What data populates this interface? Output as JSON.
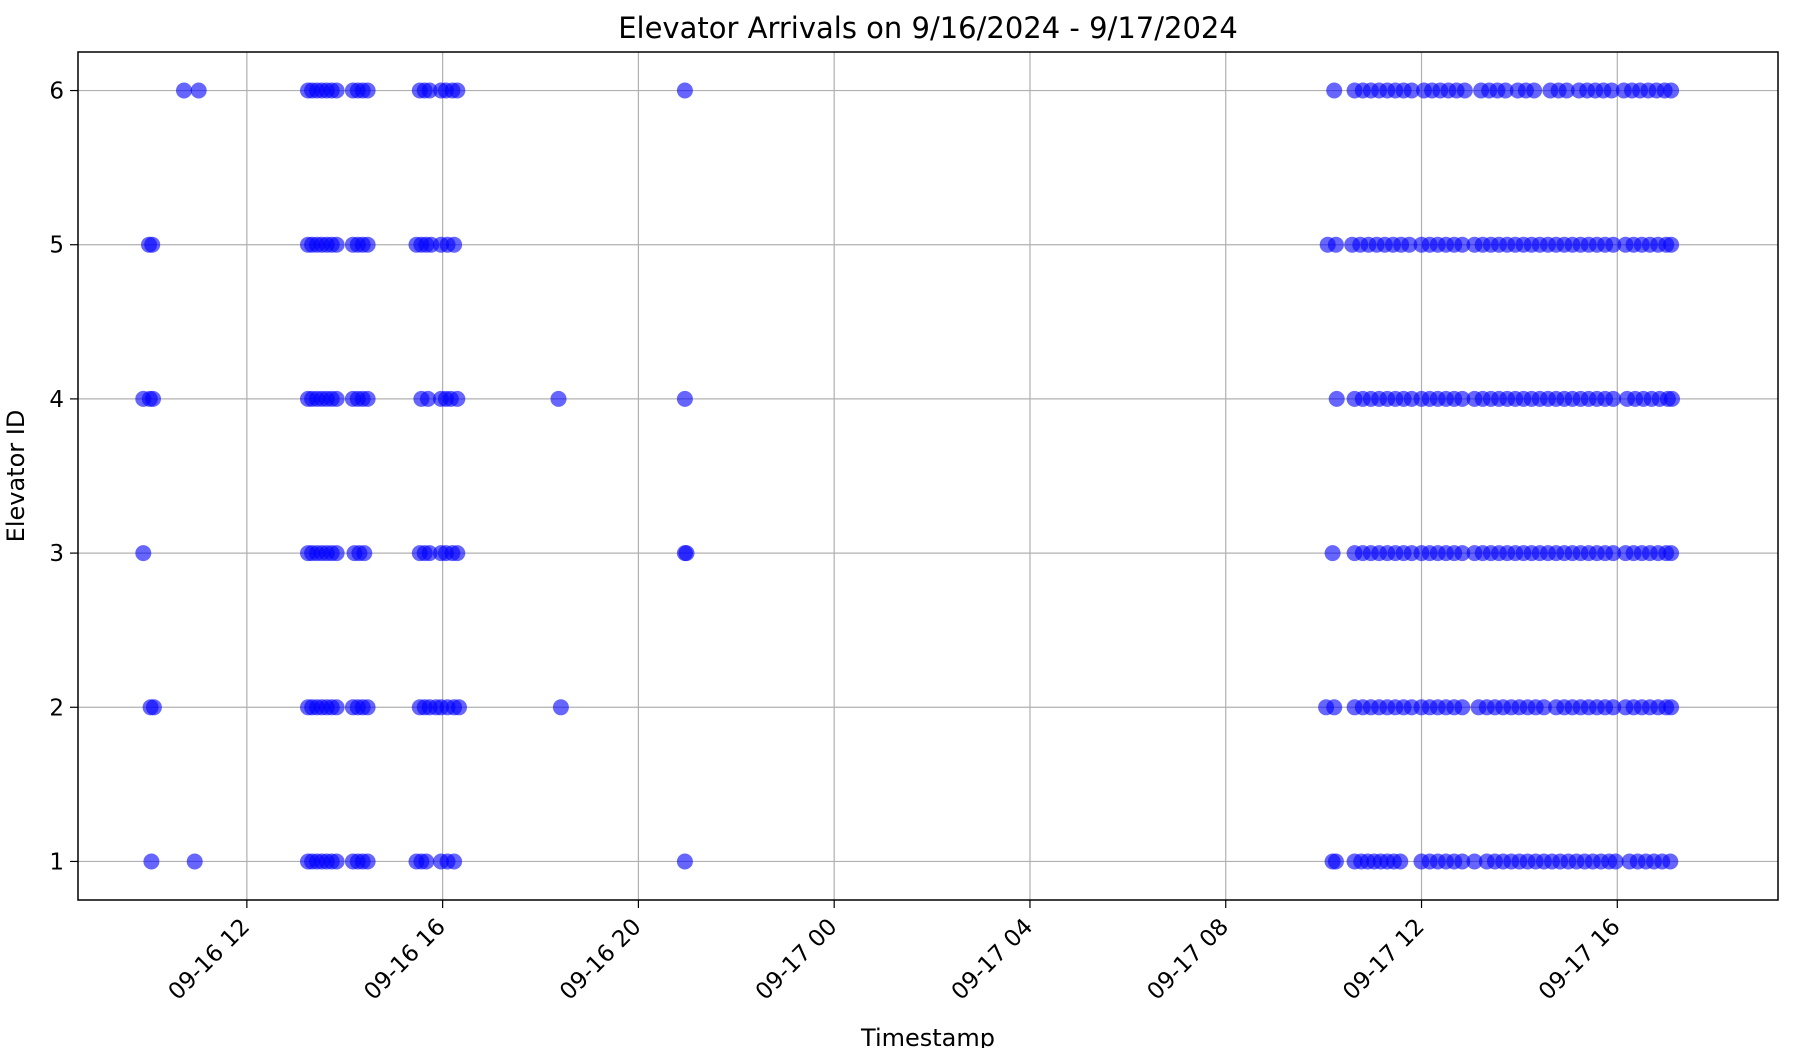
{
  "chart_data": {
    "type": "scatter",
    "title": "Elevator Arrivals on 9/16/2024 - 9/17/2024",
    "xlabel": "Timestamp",
    "ylabel": "Elevator ID",
    "x_is_time": true,
    "xlim": [
      "2024-09-16 08:33",
      "2024-09-17 19:17"
    ],
    "ylim": [
      0.75,
      6.25
    ],
    "x_ticks": [
      {
        "t": "2024-09-16 12:00",
        "label": "09-16 12"
      },
      {
        "t": "2024-09-16 16:00",
        "label": "09-16 16"
      },
      {
        "t": "2024-09-16 20:00",
        "label": "09-16 20"
      },
      {
        "t": "2024-09-17 00:00",
        "label": "09-17 00"
      },
      {
        "t": "2024-09-17 04:00",
        "label": "09-17 04"
      },
      {
        "t": "2024-09-17 08:00",
        "label": "09-17 08"
      },
      {
        "t": "2024-09-17 12:00",
        "label": "09-17 12"
      },
      {
        "t": "2024-09-17 16:00",
        "label": "09-17 16"
      }
    ],
    "y_ticks": [
      1,
      2,
      3,
      4,
      5,
      6
    ],
    "grid": true,
    "marker_color": "#0000ff",
    "marker_alpha": 0.6,
    "series": [
      {
        "y": 6,
        "x": [
          "2024-09-16 10:43",
          "2024-09-16 11:01",
          "2024-09-16 13:15",
          "2024-09-16 13:20",
          "2024-09-16 13:26",
          "2024-09-16 13:32",
          "2024-09-16 13:38",
          "2024-09-16 13:44",
          "2024-09-16 13:50",
          "2024-09-16 14:10",
          "2024-09-16 14:16",
          "2024-09-16 14:22",
          "2024-09-16 14:28",
          "2024-09-16 15:32",
          "2024-09-16 15:38",
          "2024-09-16 15:44",
          "2024-09-16 15:58",
          "2024-09-16 16:04",
          "2024-09-16 16:12",
          "2024-09-16 16:18",
          "2024-09-16 20:57",
          "2024-09-17 10:13",
          "2024-09-17 10:38",
          "2024-09-17 10:48",
          "2024-09-17 10:58",
          "2024-09-17 11:08",
          "2024-09-17 11:18",
          "2024-09-17 11:28",
          "2024-09-17 11:38",
          "2024-09-17 11:48",
          "2024-09-17 12:03",
          "2024-09-17 12:13",
          "2024-09-17 12:23",
          "2024-09-17 12:33",
          "2024-09-17 12:43",
          "2024-09-17 12:53",
          "2024-09-17 13:13",
          "2024-09-17 13:23",
          "2024-09-17 13:33",
          "2024-09-17 13:43",
          "2024-09-17 13:58",
          "2024-09-17 14:08",
          "2024-09-17 14:18",
          "2024-09-17 14:38",
          "2024-09-17 14:48",
          "2024-09-17 14:58",
          "2024-09-17 15:13",
          "2024-09-17 15:23",
          "2024-09-17 15:33",
          "2024-09-17 15:43",
          "2024-09-17 15:53",
          "2024-09-17 16:08",
          "2024-09-17 16:18",
          "2024-09-17 16:28",
          "2024-09-17 16:38",
          "2024-09-17 16:48",
          "2024-09-17 16:58",
          "2024-09-17 17:06"
        ]
      },
      {
        "y": 5,
        "x": [
          "2024-09-16 10:00",
          "2024-09-16 10:04",
          "2024-09-16 13:15",
          "2024-09-16 13:20",
          "2024-09-16 13:26",
          "2024-09-16 13:32",
          "2024-09-16 13:38",
          "2024-09-16 13:44",
          "2024-09-16 13:50",
          "2024-09-16 14:10",
          "2024-09-16 14:16",
          "2024-09-16 14:22",
          "2024-09-16 14:28",
          "2024-09-16 15:28",
          "2024-09-16 15:34",
          "2024-09-16 15:40",
          "2024-09-16 15:46",
          "2024-09-16 15:58",
          "2024-09-16 16:06",
          "2024-09-16 16:14",
          "2024-09-17 10:05",
          "2024-09-17 10:15",
          "2024-09-17 10:35",
          "2024-09-17 10:45",
          "2024-09-17 10:55",
          "2024-09-17 11:05",
          "2024-09-17 11:15",
          "2024-09-17 11:25",
          "2024-09-17 11:35",
          "2024-09-17 11:45",
          "2024-09-17 12:00",
          "2024-09-17 12:10",
          "2024-09-17 12:20",
          "2024-09-17 12:30",
          "2024-09-17 12:40",
          "2024-09-17 12:50",
          "2024-09-17 13:05",
          "2024-09-17 13:15",
          "2024-09-17 13:25",
          "2024-09-17 13:35",
          "2024-09-17 13:45",
          "2024-09-17 13:55",
          "2024-09-17 14:05",
          "2024-09-17 14:15",
          "2024-09-17 14:25",
          "2024-09-17 14:35",
          "2024-09-17 14:45",
          "2024-09-17 14:55",
          "2024-09-17 15:05",
          "2024-09-17 15:15",
          "2024-09-17 15:25",
          "2024-09-17 15:35",
          "2024-09-17 15:45",
          "2024-09-17 15:55",
          "2024-09-17 16:10",
          "2024-09-17 16:20",
          "2024-09-17 16:30",
          "2024-09-17 16:40",
          "2024-09-17 16:50",
          "2024-09-17 17:00",
          "2024-09-17 17:06"
        ]
      },
      {
        "y": 4,
        "x": [
          "2024-09-16 09:53",
          "2024-09-16 10:01",
          "2024-09-16 10:05",
          "2024-09-16 13:15",
          "2024-09-16 13:20",
          "2024-09-16 13:26",
          "2024-09-16 13:32",
          "2024-09-16 13:38",
          "2024-09-16 13:44",
          "2024-09-16 13:50",
          "2024-09-16 14:10",
          "2024-09-16 14:16",
          "2024-09-16 14:22",
          "2024-09-16 14:28",
          "2024-09-16 15:34",
          "2024-09-16 15:42",
          "2024-09-16 15:58",
          "2024-09-16 16:04",
          "2024-09-16 16:10",
          "2024-09-16 16:18",
          "2024-09-16 18:22",
          "2024-09-16 20:57",
          "2024-09-17 10:16",
          "2024-09-17 10:38",
          "2024-09-17 10:48",
          "2024-09-17 10:58",
          "2024-09-17 11:08",
          "2024-09-17 11:18",
          "2024-09-17 11:28",
          "2024-09-17 11:38",
          "2024-09-17 11:48",
          "2024-09-17 12:00",
          "2024-09-17 12:10",
          "2024-09-17 12:20",
          "2024-09-17 12:30",
          "2024-09-17 12:40",
          "2024-09-17 12:50",
          "2024-09-17 13:05",
          "2024-09-17 13:15",
          "2024-09-17 13:25",
          "2024-09-17 13:35",
          "2024-09-17 13:45",
          "2024-09-17 13:55",
          "2024-09-17 14:05",
          "2024-09-17 14:15",
          "2024-09-17 14:25",
          "2024-09-17 14:35",
          "2024-09-17 14:45",
          "2024-09-17 14:55",
          "2024-09-17 15:05",
          "2024-09-17 15:15",
          "2024-09-17 15:25",
          "2024-09-17 15:35",
          "2024-09-17 15:45",
          "2024-09-17 15:55",
          "2024-09-17 16:12",
          "2024-09-17 16:22",
          "2024-09-17 16:32",
          "2024-09-17 16:42",
          "2024-09-17 16:52",
          "2024-09-17 17:02",
          "2024-09-17 17:07"
        ]
      },
      {
        "y": 3,
        "x": [
          "2024-09-16 09:53",
          "2024-09-16 13:15",
          "2024-09-16 13:20",
          "2024-09-16 13:26",
          "2024-09-16 13:32",
          "2024-09-16 13:38",
          "2024-09-16 13:44",
          "2024-09-16 13:50",
          "2024-09-16 14:12",
          "2024-09-16 14:18",
          "2024-09-16 14:24",
          "2024-09-16 15:32",
          "2024-09-16 15:38",
          "2024-09-16 15:44",
          "2024-09-16 15:58",
          "2024-09-16 16:04",
          "2024-09-16 16:12",
          "2024-09-16 16:18",
          "2024-09-16 20:57",
          "2024-09-16 20:59",
          "2024-09-17 10:11",
          "2024-09-17 10:38",
          "2024-09-17 10:48",
          "2024-09-17 10:58",
          "2024-09-17 11:08",
          "2024-09-17 11:18",
          "2024-09-17 11:28",
          "2024-09-17 11:38",
          "2024-09-17 11:48",
          "2024-09-17 12:00",
          "2024-09-17 12:10",
          "2024-09-17 12:20",
          "2024-09-17 12:30",
          "2024-09-17 12:40",
          "2024-09-17 12:50",
          "2024-09-17 13:05",
          "2024-09-17 13:15",
          "2024-09-17 13:25",
          "2024-09-17 13:35",
          "2024-09-17 13:45",
          "2024-09-17 13:55",
          "2024-09-17 14:05",
          "2024-09-17 14:15",
          "2024-09-17 14:25",
          "2024-09-17 14:35",
          "2024-09-17 14:45",
          "2024-09-17 14:55",
          "2024-09-17 15:05",
          "2024-09-17 15:15",
          "2024-09-17 15:25",
          "2024-09-17 15:35",
          "2024-09-17 15:45",
          "2024-09-17 15:55",
          "2024-09-17 16:10",
          "2024-09-17 16:20",
          "2024-09-17 16:30",
          "2024-09-17 16:40",
          "2024-09-17 16:50",
          "2024-09-17 17:00",
          "2024-09-17 17:06"
        ]
      },
      {
        "y": 2,
        "x": [
          "2024-09-16 10:02",
          "2024-09-16 10:06",
          "2024-09-16 13:15",
          "2024-09-16 13:20",
          "2024-09-16 13:26",
          "2024-09-16 13:32",
          "2024-09-16 13:38",
          "2024-09-16 13:44",
          "2024-09-16 13:50",
          "2024-09-16 14:10",
          "2024-09-16 14:16",
          "2024-09-16 14:22",
          "2024-09-16 14:28",
          "2024-09-16 15:32",
          "2024-09-16 15:38",
          "2024-09-16 15:44",
          "2024-09-16 15:52",
          "2024-09-16 15:58",
          "2024-09-16 16:06",
          "2024-09-16 16:14",
          "2024-09-16 16:20",
          "2024-09-16 18:25",
          "2024-09-17 10:03",
          "2024-09-17 10:13",
          "2024-09-17 10:38",
          "2024-09-17 10:48",
          "2024-09-17 10:58",
          "2024-09-17 11:08",
          "2024-09-17 11:18",
          "2024-09-17 11:28",
          "2024-09-17 11:38",
          "2024-09-17 11:48",
          "2024-09-17 12:00",
          "2024-09-17 12:10",
          "2024-09-17 12:20",
          "2024-09-17 12:30",
          "2024-09-17 12:40",
          "2024-09-17 12:50",
          "2024-09-17 13:10",
          "2024-09-17 13:20",
          "2024-09-17 13:30",
          "2024-09-17 13:40",
          "2024-09-17 13:50",
          "2024-09-17 14:00",
          "2024-09-17 14:10",
          "2024-09-17 14:20",
          "2024-09-17 14:30",
          "2024-09-17 14:45",
          "2024-09-17 14:55",
          "2024-09-17 15:05",
          "2024-09-17 15:15",
          "2024-09-17 15:25",
          "2024-09-17 15:35",
          "2024-09-17 15:45",
          "2024-09-17 15:55",
          "2024-09-17 16:10",
          "2024-09-17 16:20",
          "2024-09-17 16:30",
          "2024-09-17 16:40",
          "2024-09-17 16:50",
          "2024-09-17 17:00",
          "2024-09-17 17:06"
        ]
      },
      {
        "y": 1,
        "x": [
          "2024-09-16 10:03",
          "2024-09-16 10:56",
          "2024-09-16 13:15",
          "2024-09-16 13:20",
          "2024-09-16 13:26",
          "2024-09-16 13:32",
          "2024-09-16 13:38",
          "2024-09-16 13:44",
          "2024-09-16 13:50",
          "2024-09-16 14:10",
          "2024-09-16 14:16",
          "2024-09-16 14:22",
          "2024-09-16 14:28",
          "2024-09-16 15:28",
          "2024-09-16 15:34",
          "2024-09-16 15:40",
          "2024-09-16 15:58",
          "2024-09-16 16:06",
          "2024-09-16 16:14",
          "2024-09-16 20:57",
          "2024-09-17 10:11",
          "2024-09-17 10:15",
          "2024-09-17 10:38",
          "2024-09-17 10:46",
          "2024-09-17 10:54",
          "2024-09-17 11:02",
          "2024-09-17 11:10",
          "2024-09-17 11:18",
          "2024-09-17 11:26",
          "2024-09-17 11:34",
          "2024-09-17 12:00",
          "2024-09-17 12:10",
          "2024-09-17 12:20",
          "2024-09-17 12:30",
          "2024-09-17 12:40",
          "2024-09-17 12:50",
          "2024-09-17 13:05",
          "2024-09-17 13:20",
          "2024-09-17 13:30",
          "2024-09-17 13:40",
          "2024-09-17 13:50",
          "2024-09-17 14:00",
          "2024-09-17 14:10",
          "2024-09-17 14:20",
          "2024-09-17 14:30",
          "2024-09-17 14:40",
          "2024-09-17 14:50",
          "2024-09-17 15:00",
          "2024-09-17 15:10",
          "2024-09-17 15:20",
          "2024-09-17 15:30",
          "2024-09-17 15:40",
          "2024-09-17 15:50",
          "2024-09-17 15:58",
          "2024-09-17 16:15",
          "2024-09-17 16:25",
          "2024-09-17 16:35",
          "2024-09-17 16:45",
          "2024-09-17 16:55",
          "2024-09-17 17:05"
        ]
      }
    ]
  }
}
